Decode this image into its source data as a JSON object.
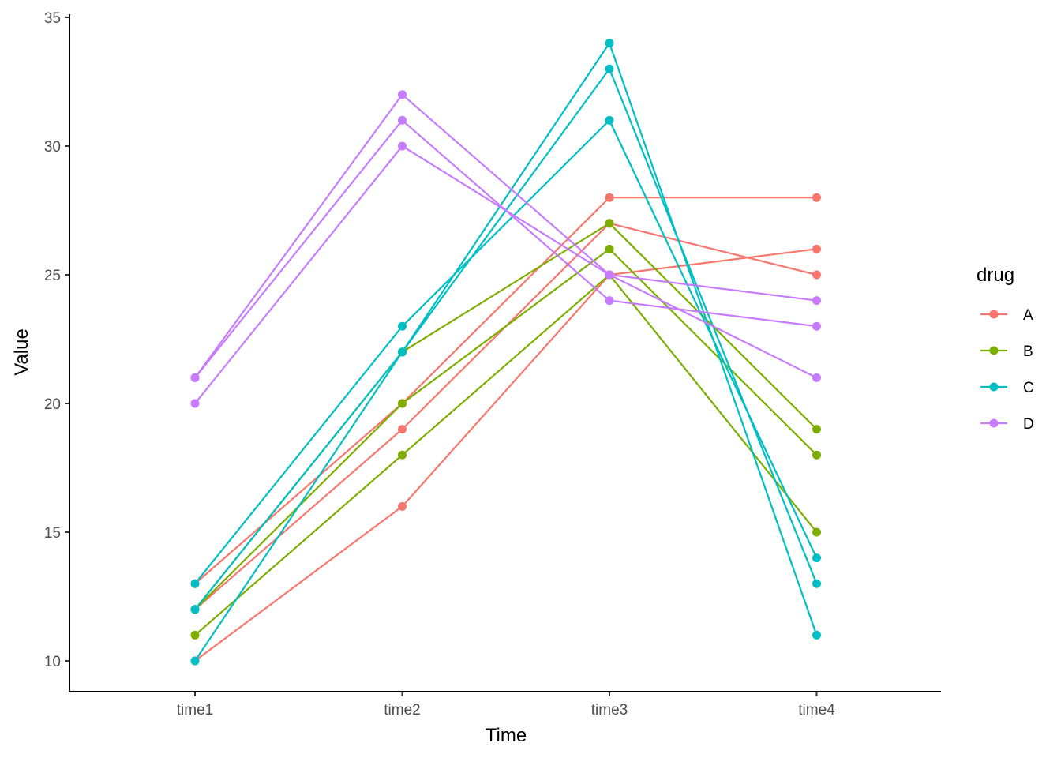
{
  "chart_data": {
    "type": "line",
    "xlabel": "Time",
    "ylabel": "Value",
    "categories": [
      "time1",
      "time2",
      "time3",
      "time4"
    ],
    "ylim": [
      9,
      35
    ],
    "yticks": [
      10,
      15,
      20,
      25,
      30,
      35
    ],
    "grid": false,
    "legend": {
      "title": "drug",
      "placement": "right"
    },
    "series": [
      {
        "name": "A",
        "color": "#F8766D",
        "values": [
          10,
          16,
          25,
          26
        ]
      },
      {
        "name": "A",
        "color": "#F8766D",
        "values": [
          12,
          19,
          27,
          25
        ]
      },
      {
        "name": "A",
        "color": "#F8766D",
        "values": [
          13,
          20,
          28,
          28
        ]
      },
      {
        "name": "B",
        "color": "#7CAE00",
        "values": [
          11,
          18,
          25,
          15
        ]
      },
      {
        "name": "B",
        "color": "#7CAE00",
        "values": [
          12,
          20,
          26,
          18
        ]
      },
      {
        "name": "B",
        "color": "#7CAE00",
        "values": [
          12,
          22,
          27,
          19
        ]
      },
      {
        "name": "C",
        "color": "#00BFC4",
        "values": [
          10,
          22,
          34,
          11
        ]
      },
      {
        "name": "C",
        "color": "#00BFC4",
        "values": [
          12,
          22,
          33,
          13
        ]
      },
      {
        "name": "C",
        "color": "#00BFC4",
        "values": [
          13,
          23,
          31,
          14
        ]
      },
      {
        "name": "D",
        "color": "#C77CFF",
        "values": [
          21,
          32,
          25,
          21
        ]
      },
      {
        "name": "D",
        "color": "#C77CFF",
        "values": [
          21,
          31,
          24,
          23
        ]
      },
      {
        "name": "D",
        "color": "#C77CFF",
        "values": [
          20,
          30,
          25,
          24
        ]
      }
    ],
    "legend_entries": [
      {
        "label": "A",
        "color": "#F8766D"
      },
      {
        "label": "B",
        "color": "#7CAE00"
      },
      {
        "label": "C",
        "color": "#00BFC4"
      },
      {
        "label": "D",
        "color": "#C77CFF"
      }
    ]
  }
}
